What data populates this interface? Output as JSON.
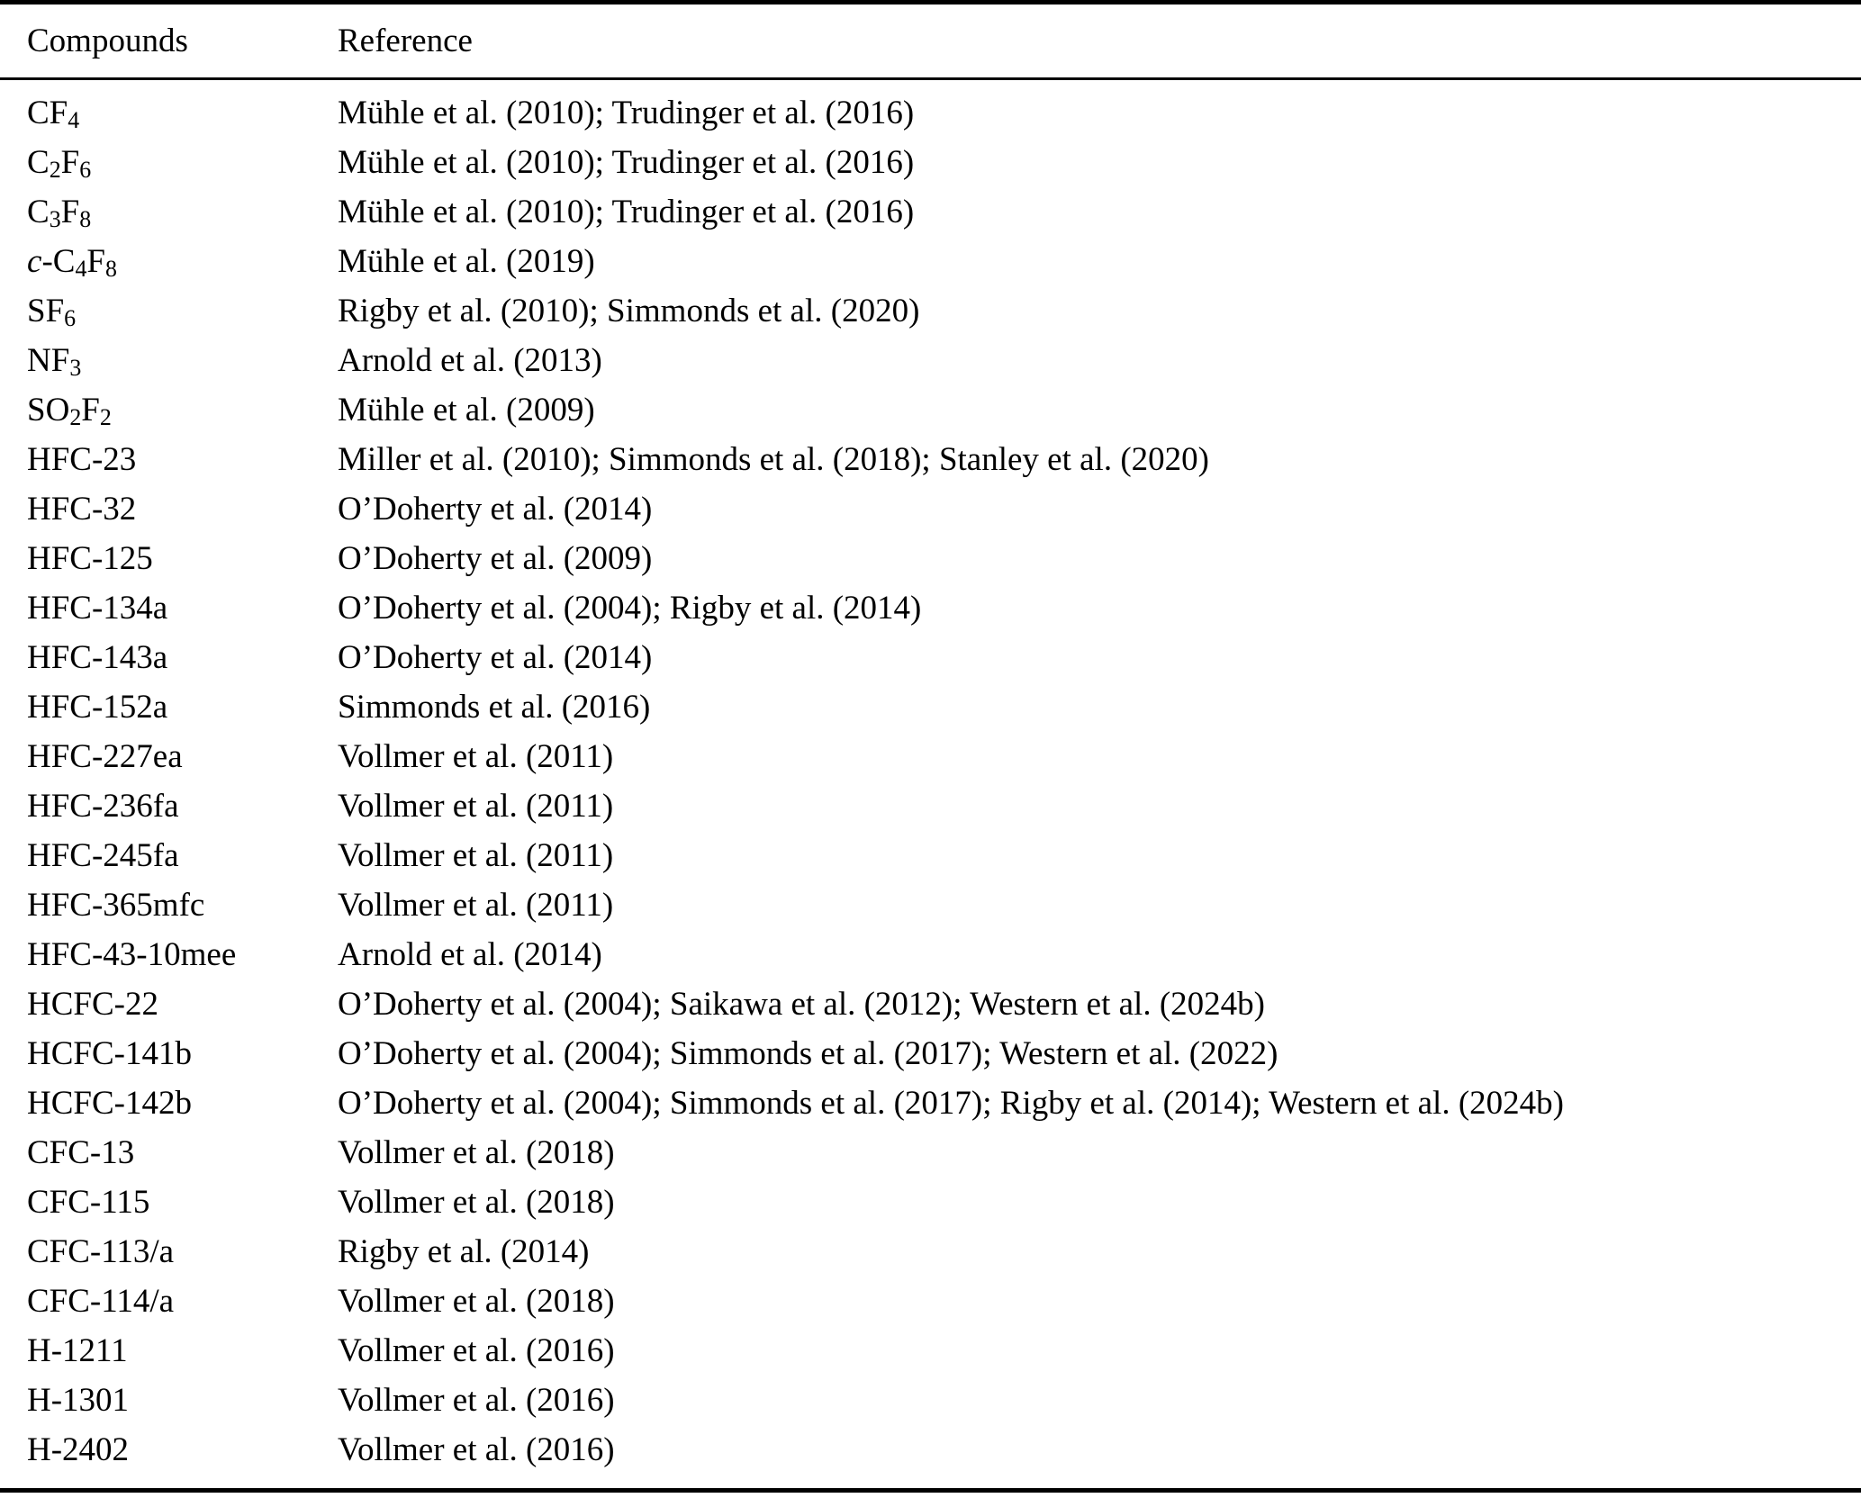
{
  "table": {
    "columns": [
      "Compounds",
      "Reference"
    ],
    "rows": [
      {
        "compound": [
          {
            "t": "CF"
          },
          {
            "t": "4",
            "sub": true
          }
        ],
        "reference": "Mühle et al. (2010); Trudinger et al. (2016)"
      },
      {
        "compound": [
          {
            "t": "C"
          },
          {
            "t": "2",
            "sub": true
          },
          {
            "t": "F"
          },
          {
            "t": "6",
            "sub": true
          }
        ],
        "reference": "Mühle et al. (2010); Trudinger et al. (2016)"
      },
      {
        "compound": [
          {
            "t": "C"
          },
          {
            "t": "3",
            "sub": true
          },
          {
            "t": "F"
          },
          {
            "t": "8",
            "sub": true
          }
        ],
        "reference": "Mühle et al. (2010); Trudinger et al. (2016)"
      },
      {
        "compound": [
          {
            "t": "c",
            "i": true
          },
          {
            "t": "-C"
          },
          {
            "t": "4",
            "sub": true
          },
          {
            "t": "F"
          },
          {
            "t": "8",
            "sub": true
          }
        ],
        "reference": "Mühle et al. (2019)"
      },
      {
        "compound": [
          {
            "t": "SF"
          },
          {
            "t": "6",
            "sub": true
          }
        ],
        "reference": "Rigby et al. (2010); Simmonds et al. (2020)"
      },
      {
        "compound": [
          {
            "t": "NF"
          },
          {
            "t": "3",
            "sub": true
          }
        ],
        "reference": "Arnold et al. (2013)"
      },
      {
        "compound": [
          {
            "t": "SO"
          },
          {
            "t": "2",
            "sub": true
          },
          {
            "t": "F"
          },
          {
            "t": "2",
            "sub": true
          }
        ],
        "reference": "Mühle et al. (2009)"
      },
      {
        "compound": [
          {
            "t": "HFC-23"
          }
        ],
        "reference": "Miller et al. (2010); Simmonds et al. (2018); Stanley et al. (2020)"
      },
      {
        "compound": [
          {
            "t": "HFC-32"
          }
        ],
        "reference": "O’Doherty et al. (2014)"
      },
      {
        "compound": [
          {
            "t": "HFC-125"
          }
        ],
        "reference": "O’Doherty et al. (2009)"
      },
      {
        "compound": [
          {
            "t": "HFC-134a"
          }
        ],
        "reference": "O’Doherty et al. (2004); Rigby et al. (2014)"
      },
      {
        "compound": [
          {
            "t": "HFC-143a"
          }
        ],
        "reference": "O’Doherty et al. (2014)"
      },
      {
        "compound": [
          {
            "t": "HFC-152a"
          }
        ],
        "reference": "Simmonds et al. (2016)"
      },
      {
        "compound": [
          {
            "t": "HFC-227ea"
          }
        ],
        "reference": "Vollmer et al. (2011)"
      },
      {
        "compound": [
          {
            "t": "HFC-236fa"
          }
        ],
        "reference": "Vollmer et al. (2011)"
      },
      {
        "compound": [
          {
            "t": "HFC-245fa"
          }
        ],
        "reference": "Vollmer et al. (2011)"
      },
      {
        "compound": [
          {
            "t": "HFC-365mfc"
          }
        ],
        "reference": "Vollmer et al. (2011)"
      },
      {
        "compound": [
          {
            "t": "HFC-43-10mee"
          }
        ],
        "reference": "Arnold et al. (2014)"
      },
      {
        "compound": [
          {
            "t": "HCFC-22"
          }
        ],
        "reference": "O’Doherty et al. (2004); Saikawa et al. (2012); Western et al. (2024b)"
      },
      {
        "compound": [
          {
            "t": "HCFC-141b"
          }
        ],
        "reference": "O’Doherty et al. (2004); Simmonds et al. (2017); Western et al. (2022)"
      },
      {
        "compound": [
          {
            "t": "HCFC-142b"
          }
        ],
        "reference": "O’Doherty et al. (2004); Simmonds et al. (2017); Rigby et al. (2014); Western et al. (2024b)"
      },
      {
        "compound": [
          {
            "t": "CFC-13"
          }
        ],
        "reference": "Vollmer et al. (2018)"
      },
      {
        "compound": [
          {
            "t": "CFC-115"
          }
        ],
        "reference": "Vollmer et al. (2018)"
      },
      {
        "compound": [
          {
            "t": "CFC-113/a"
          }
        ],
        "reference": "Rigby et al. (2014)"
      },
      {
        "compound": [
          {
            "t": "CFC-114/a"
          }
        ],
        "reference": "Vollmer et al. (2018)"
      },
      {
        "compound": [
          {
            "t": "H-1211"
          }
        ],
        "reference": "Vollmer et al. (2016)"
      },
      {
        "compound": [
          {
            "t": "H-1301"
          }
        ],
        "reference": "Vollmer et al. (2016)"
      },
      {
        "compound": [
          {
            "t": "H-2402"
          }
        ],
        "reference": "Vollmer et al. (2016)"
      }
    ]
  },
  "colors": {
    "text": "#000000",
    "background": "#ffffff",
    "rule": "#000000"
  }
}
